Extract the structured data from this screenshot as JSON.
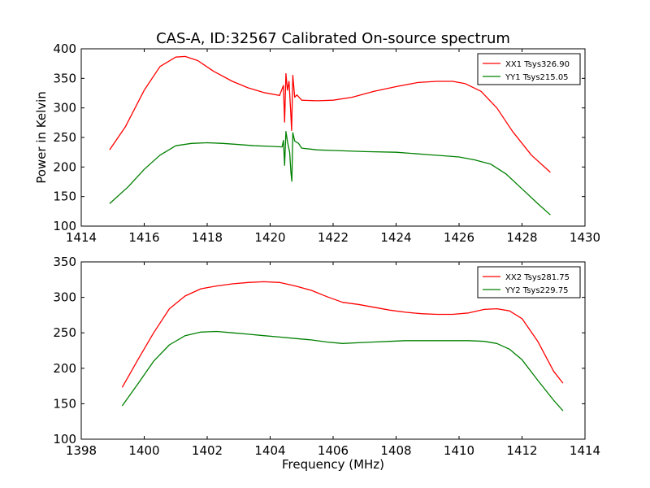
{
  "figure": {
    "title": "CAS-A, ID:32567 Calibrated On-source spectrum",
    "ylabel": "Power in Kelvin",
    "xlabel": "Frequency (MHz)"
  },
  "colors": {
    "red": "#ff0000",
    "green": "#008000",
    "axis": "#000000",
    "background": "#ffffff"
  },
  "chart_data": [
    {
      "type": "line",
      "title": "CAS-A, ID:32567 Calibrated On-source spectrum",
      "xlabel": "",
      "ylabel": "Power in Kelvin",
      "xlim": [
        1414,
        1430
      ],
      "ylim": [
        100,
        400
      ],
      "xticks": [
        1414,
        1416,
        1418,
        1420,
        1422,
        1424,
        1426,
        1428,
        1430
      ],
      "yticks": [
        100,
        150,
        200,
        250,
        300,
        350,
        400
      ],
      "grid": false,
      "legend": "top-right",
      "series": [
        {
          "name": "XX1 Tsys326.90",
          "color": "#ff0000",
          "points": [
            [
              1414.9,
              229
            ],
            [
              1415.4,
              268
            ],
            [
              1416.0,
              330
            ],
            [
              1416.5,
              370
            ],
            [
              1417.0,
              386
            ],
            [
              1417.3,
              387
            ],
            [
              1417.7,
              380
            ],
            [
              1418.2,
              362
            ],
            [
              1418.8,
              345
            ],
            [
              1419.3,
              334
            ],
            [
              1419.8,
              326
            ],
            [
              1420.3,
              321
            ],
            [
              1420.42,
              338
            ],
            [
              1420.46,
              276
            ],
            [
              1420.5,
              358
            ],
            [
              1420.55,
              330
            ],
            [
              1420.6,
              345
            ],
            [
              1420.65,
              296
            ],
            [
              1420.68,
              262
            ],
            [
              1420.72,
              355
            ],
            [
              1420.78,
              318
            ],
            [
              1420.85,
              322
            ],
            [
              1421.0,
              313
            ],
            [
              1421.5,
              312
            ],
            [
              1422.0,
              313
            ],
            [
              1422.6,
              318
            ],
            [
              1423.3,
              328
            ],
            [
              1424.0,
              336
            ],
            [
              1424.7,
              343
            ],
            [
              1425.3,
              345
            ],
            [
              1425.8,
              345
            ],
            [
              1426.2,
              341
            ],
            [
              1426.7,
              328
            ],
            [
              1427.2,
              300
            ],
            [
              1427.7,
              260
            ],
            [
              1428.3,
              220
            ],
            [
              1428.9,
              191
            ]
          ]
        },
        {
          "name": "YY1 Tsys215.05",
          "color": "#008000",
          "points": [
            [
              1414.9,
              138
            ],
            [
              1415.5,
              167
            ],
            [
              1416.0,
              196
            ],
            [
              1416.5,
              220
            ],
            [
              1417.0,
              236
            ],
            [
              1417.5,
              240
            ],
            [
              1418.0,
              241
            ],
            [
              1418.5,
              240
            ],
            [
              1419.0,
              238
            ],
            [
              1419.5,
              236
            ],
            [
              1420.0,
              235
            ],
            [
              1420.38,
              234
            ],
            [
              1420.42,
              245
            ],
            [
              1420.46,
              203
            ],
            [
              1420.5,
              260
            ],
            [
              1420.56,
              240
            ],
            [
              1420.62,
              225
            ],
            [
              1420.66,
              190
            ],
            [
              1420.69,
              176
            ],
            [
              1420.72,
              258
            ],
            [
              1420.78,
              244
            ],
            [
              1420.9,
              240
            ],
            [
              1421.0,
              232
            ],
            [
              1421.5,
              229
            ],
            [
              1422.0,
              228
            ],
            [
              1423.0,
              226
            ],
            [
              1424.0,
              225
            ],
            [
              1424.5,
              223
            ],
            [
              1425.0,
              221
            ],
            [
              1425.5,
              219
            ],
            [
              1426.0,
              217
            ],
            [
              1426.5,
              212
            ],
            [
              1427.0,
              205
            ],
            [
              1427.5,
              188
            ],
            [
              1428.0,
              163
            ],
            [
              1428.5,
              138
            ],
            [
              1428.9,
              119
            ]
          ]
        }
      ]
    },
    {
      "type": "line",
      "title": "",
      "xlabel": "Frequency (MHz)",
      "ylabel": "",
      "xlim": [
        1398,
        1414
      ],
      "ylim": [
        100,
        350
      ],
      "xticks": [
        1398,
        1400,
        1402,
        1404,
        1406,
        1408,
        1410,
        1412,
        1414
      ],
      "yticks": [
        100,
        150,
        200,
        250,
        300,
        350
      ],
      "grid": false,
      "legend": "top-right",
      "series": [
        {
          "name": "XX2 Tsys281.75",
          "color": "#ff0000",
          "points": [
            [
              1399.3,
              173
            ],
            [
              1399.8,
              212
            ],
            [
              1400.3,
              250
            ],
            [
              1400.8,
              284
            ],
            [
              1401.3,
              302
            ],
            [
              1401.8,
              312
            ],
            [
              1402.3,
              316
            ],
            [
              1402.8,
              319
            ],
            [
              1403.3,
              321
            ],
            [
              1403.8,
              322
            ],
            [
              1404.3,
              321
            ],
            [
              1404.8,
              316
            ],
            [
              1405.3,
              310
            ],
            [
              1405.8,
              301
            ],
            [
              1406.3,
              293
            ],
            [
              1406.8,
              290
            ],
            [
              1407.3,
              286
            ],
            [
              1407.8,
              282
            ],
            [
              1408.3,
              279
            ],
            [
              1408.8,
              277
            ],
            [
              1409.3,
              276
            ],
            [
              1409.8,
              276
            ],
            [
              1410.3,
              278
            ],
            [
              1410.8,
              283
            ],
            [
              1411.2,
              284
            ],
            [
              1411.6,
              281
            ],
            [
              1412.0,
              270
            ],
            [
              1412.5,
              238
            ],
            [
              1413.0,
              196
            ],
            [
              1413.3,
              179
            ]
          ]
        },
        {
          "name": "YY2 Tsys229.75",
          "color": "#008000",
          "points": [
            [
              1399.3,
              147
            ],
            [
              1399.8,
              178
            ],
            [
              1400.3,
              210
            ],
            [
              1400.8,
              233
            ],
            [
              1401.3,
              246
            ],
            [
              1401.8,
              251
            ],
            [
              1402.3,
              252
            ],
            [
              1402.8,
              250
            ],
            [
              1403.3,
              248
            ],
            [
              1403.8,
              246
            ],
            [
              1404.3,
              244
            ],
            [
              1404.8,
              242
            ],
            [
              1405.3,
              240
            ],
            [
              1405.8,
              237
            ],
            [
              1406.3,
              235
            ],
            [
              1406.8,
              236
            ],
            [
              1407.3,
              237
            ],
            [
              1407.8,
              238
            ],
            [
              1408.3,
              239
            ],
            [
              1408.8,
              239
            ],
            [
              1409.3,
              239
            ],
            [
              1409.8,
              239
            ],
            [
              1410.3,
              239
            ],
            [
              1410.8,
              238
            ],
            [
              1411.2,
              235
            ],
            [
              1411.6,
              227
            ],
            [
              1412.0,
              212
            ],
            [
              1412.5,
              183
            ],
            [
              1413.0,
              155
            ],
            [
              1413.3,
              140
            ]
          ]
        }
      ]
    }
  ]
}
